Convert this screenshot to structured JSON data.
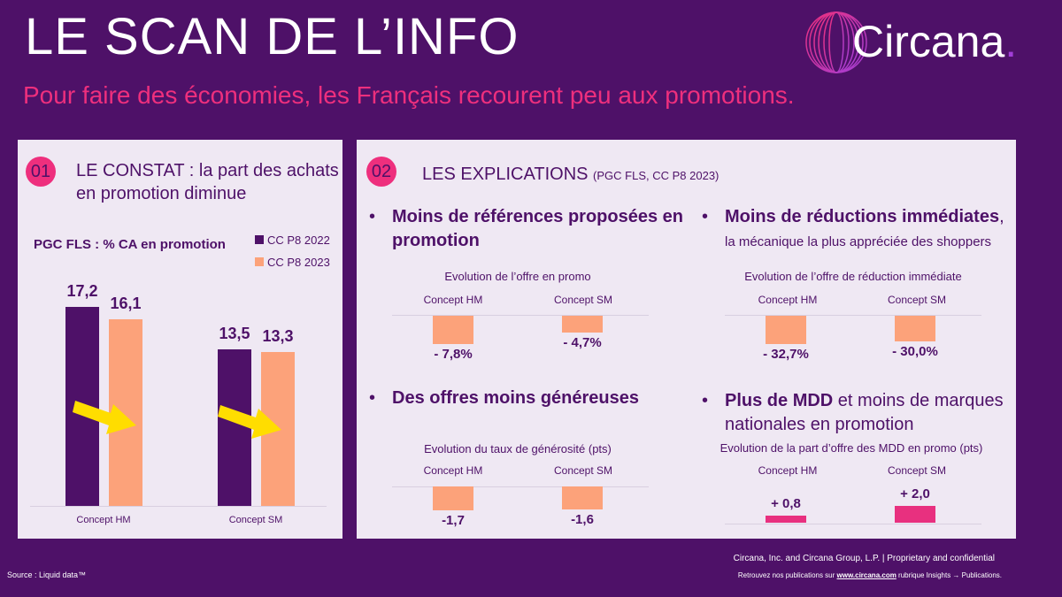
{
  "header": {
    "title": "LE SCAN DE L’INFO",
    "subtitle": "Pour faire des économies, les Français recourent peu aux promotions.",
    "logo_text": "Circana",
    "logo_dot": "."
  },
  "colors": {
    "background": "#4e1168",
    "pink": "#ee2f7d",
    "purple_bar": "#4e1168",
    "orange_bar": "#fca27a",
    "mdd_bar": "#e8307f",
    "arrow": "#ffdd00"
  },
  "panel1": {
    "number": "01",
    "heading": "LE CONSTAT : la part des achats en promotion diminue"
  },
  "panel2": {
    "number": "02",
    "heading": "LES EXPLICATIONS",
    "heading_note": "(PGC FLS, CC P8 2023)"
  },
  "chart_data": [
    {
      "type": "bar",
      "title": "PGC FLS : % CA en promotion",
      "categories": [
        "Concept HM",
        "Concept SM"
      ],
      "series": [
        {
          "name": "CC P8 2022",
          "values": [
            17.2,
            13.5
          ],
          "labels": [
            "17,2",
            "13,5"
          ]
        },
        {
          "name": "CC P8 2023",
          "values": [
            16.1,
            13.3
          ],
          "labels": [
            "16,1",
            "13,3"
          ]
        }
      ],
      "ylim": [
        0,
        20
      ]
    },
    {
      "type": "bar",
      "section": "Moins de références proposées en promotion",
      "title": "Evolution de l’offre en promo",
      "categories": [
        "Concept HM",
        "Concept SM"
      ],
      "values": [
        -7.8,
        -4.7
      ],
      "labels": [
        "- 7,8%",
        "- 4,7%"
      ]
    },
    {
      "type": "bar",
      "section_bold": "Moins de réductions immédiates",
      "section_rest": ",",
      "section_sub": "la mécanique la plus appréciée des shoppers",
      "title": "Evolution de l’offre de réduction immédiate",
      "categories": [
        "Concept HM",
        "Concept SM"
      ],
      "values": [
        -32.7,
        -30.0
      ],
      "labels": [
        "- 32,7%",
        "- 30,0%"
      ]
    },
    {
      "type": "bar",
      "section": "Des offres moins généreuses",
      "title": "Evolution du taux de générosité (pts)",
      "categories": [
        "Concept HM",
        "Concept SM"
      ],
      "values": [
        -1.7,
        -1.6
      ],
      "labels": [
        "-1,7",
        "-1,6"
      ]
    },
    {
      "type": "bar",
      "section_bold": "Plus de MDD",
      "section_rest": " et moins de marques nationales en promotion",
      "title": "Evolution de la part d’offre des MDD en promo (pts)",
      "categories": [
        "Concept HM",
        "Concept SM"
      ],
      "values": [
        0.8,
        2.0
      ],
      "labels": [
        "+ 0,8",
        "+ 2,0"
      ]
    }
  ],
  "footer": {
    "source": "Source : Liquid data™",
    "legal": "Circana, Inc. and Circana Group, L.P. |  Proprietary and confidential",
    "pub_prefix": "Retrouvez nos publications sur ",
    "pub_link": "www.circana.com",
    "pub_suffix": " rubrique Insights → Publications."
  }
}
